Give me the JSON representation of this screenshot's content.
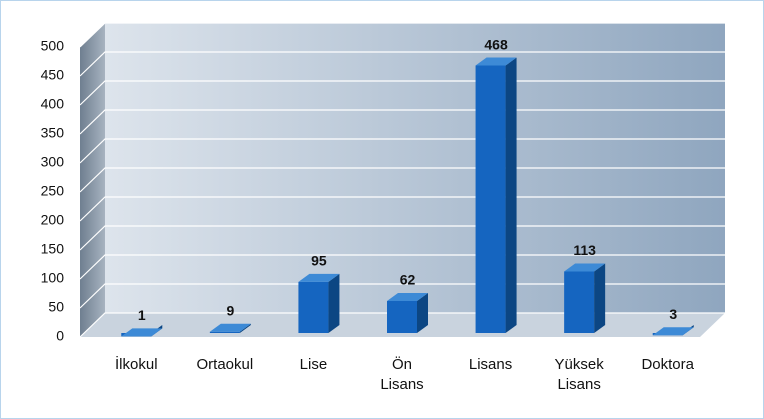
{
  "chart_data": {
    "type": "bar3d",
    "categories": [
      "İlkokul",
      "Ortaokul",
      "Lise",
      "Ön Lisans",
      "Lisans",
      "Yüksek Lisans",
      "Doktora"
    ],
    "values": [
      1,
      9,
      95,
      62,
      468,
      113,
      3
    ],
    "color": "#1565c0",
    "ylim": [
      0,
      500
    ],
    "yticks": [
      0,
      50,
      100,
      150,
      200,
      250,
      300,
      350,
      400,
      450,
      500
    ],
    "grid": true
  }
}
